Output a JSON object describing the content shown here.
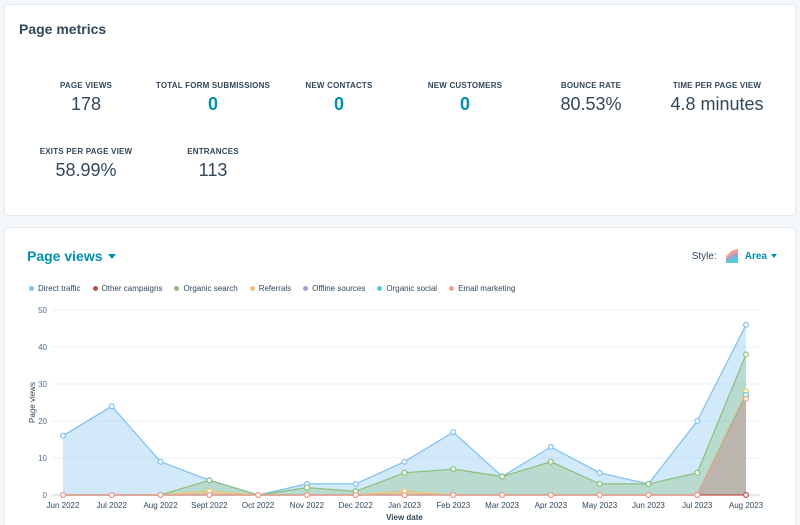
{
  "metrics_card": {
    "title": "Page metrics",
    "metrics": [
      {
        "label": "PAGE VIEWS",
        "value": "178",
        "link": false
      },
      {
        "label": "TOTAL FORM SUBMISSIONS",
        "value": "0",
        "link": true
      },
      {
        "label": "NEW CONTACTS",
        "value": "0",
        "link": true
      },
      {
        "label": "NEW CUSTOMERS",
        "value": "0",
        "link": true
      },
      {
        "label": "BOUNCE RATE",
        "value": "80.53%",
        "link": false
      },
      {
        "label": "TIME PER PAGE VIEW",
        "value": "4.8 minutes",
        "link": false
      },
      {
        "label": "EXITS PER PAGE VIEW",
        "value": "58.99%",
        "link": false
      },
      {
        "label": "ENTRANCES",
        "value": "113",
        "link": false
      }
    ]
  },
  "chart_card": {
    "title": "Page views",
    "style_label": "Style:",
    "style_value": "Area",
    "style_icon": "area-chart-icon"
  },
  "colors": {
    "accent": "#0091ae",
    "text": "#33475b",
    "direct_traffic": "#7fc0f0",
    "other_campaigns": "#c0504d",
    "organic_search": "#8cc07a",
    "referrals": "#f5c26b",
    "offline_sources": "#a89bdc",
    "organic_social": "#5bc8d8",
    "email_marketing": "#f4a08a"
  },
  "chart_data": {
    "type": "area",
    "xlabel": "View date",
    "ylabel": "Page views",
    "ylim": [
      0,
      50
    ],
    "yticks": [
      0,
      10,
      20,
      30,
      40,
      50
    ],
    "grid": true,
    "legend_position": "top-left",
    "categories": [
      "Jun 2022",
      "Jul 2022",
      "Aug 2022",
      "Sept 2022",
      "Oct 2022",
      "Nov 2022",
      "Dec 2022",
      "Jan 2023",
      "Feb 2023",
      "Mar 2023",
      "Apr 2023",
      "May 2023",
      "Jun 2023",
      "Jul 2023",
      "Aug 2023"
    ],
    "series": [
      {
        "name": "Direct traffic",
        "color": "#7fc0f0",
        "values": [
          16,
          24,
          9,
          4,
          0,
          3,
          3,
          9,
          17,
          5,
          13,
          6,
          3,
          20,
          46
        ]
      },
      {
        "name": "Other campaigns",
        "color": "#c0504d",
        "values": [
          0,
          0,
          0,
          0,
          0,
          0,
          0,
          0,
          0,
          0,
          0,
          0,
          0,
          0,
          0
        ]
      },
      {
        "name": "Organic search",
        "color": "#8cc07a",
        "values": [
          0,
          0,
          0,
          4,
          0,
          2,
          1,
          6,
          7,
          5,
          9,
          3,
          3,
          6,
          38
        ]
      },
      {
        "name": "Referrals",
        "color": "#f5c26b",
        "values": [
          0,
          0,
          0,
          1,
          0,
          0,
          0,
          1,
          0,
          0,
          0,
          0,
          0,
          0,
          28
        ]
      },
      {
        "name": "Offline sources",
        "color": "#a89bdc",
        "values": [
          0,
          0,
          0,
          0,
          0,
          0,
          0,
          0,
          0,
          0,
          0,
          0,
          0,
          0,
          27
        ]
      },
      {
        "name": "Organic social",
        "color": "#5bc8d8",
        "values": [
          0,
          0,
          0,
          0,
          0,
          0,
          0,
          0,
          0,
          0,
          0,
          0,
          0,
          0,
          27
        ]
      },
      {
        "name": "Email marketing",
        "color": "#f4a08a",
        "values": [
          0,
          0,
          0,
          0,
          0,
          0,
          0,
          0,
          0,
          0,
          0,
          0,
          0,
          0,
          26
        ]
      }
    ]
  }
}
